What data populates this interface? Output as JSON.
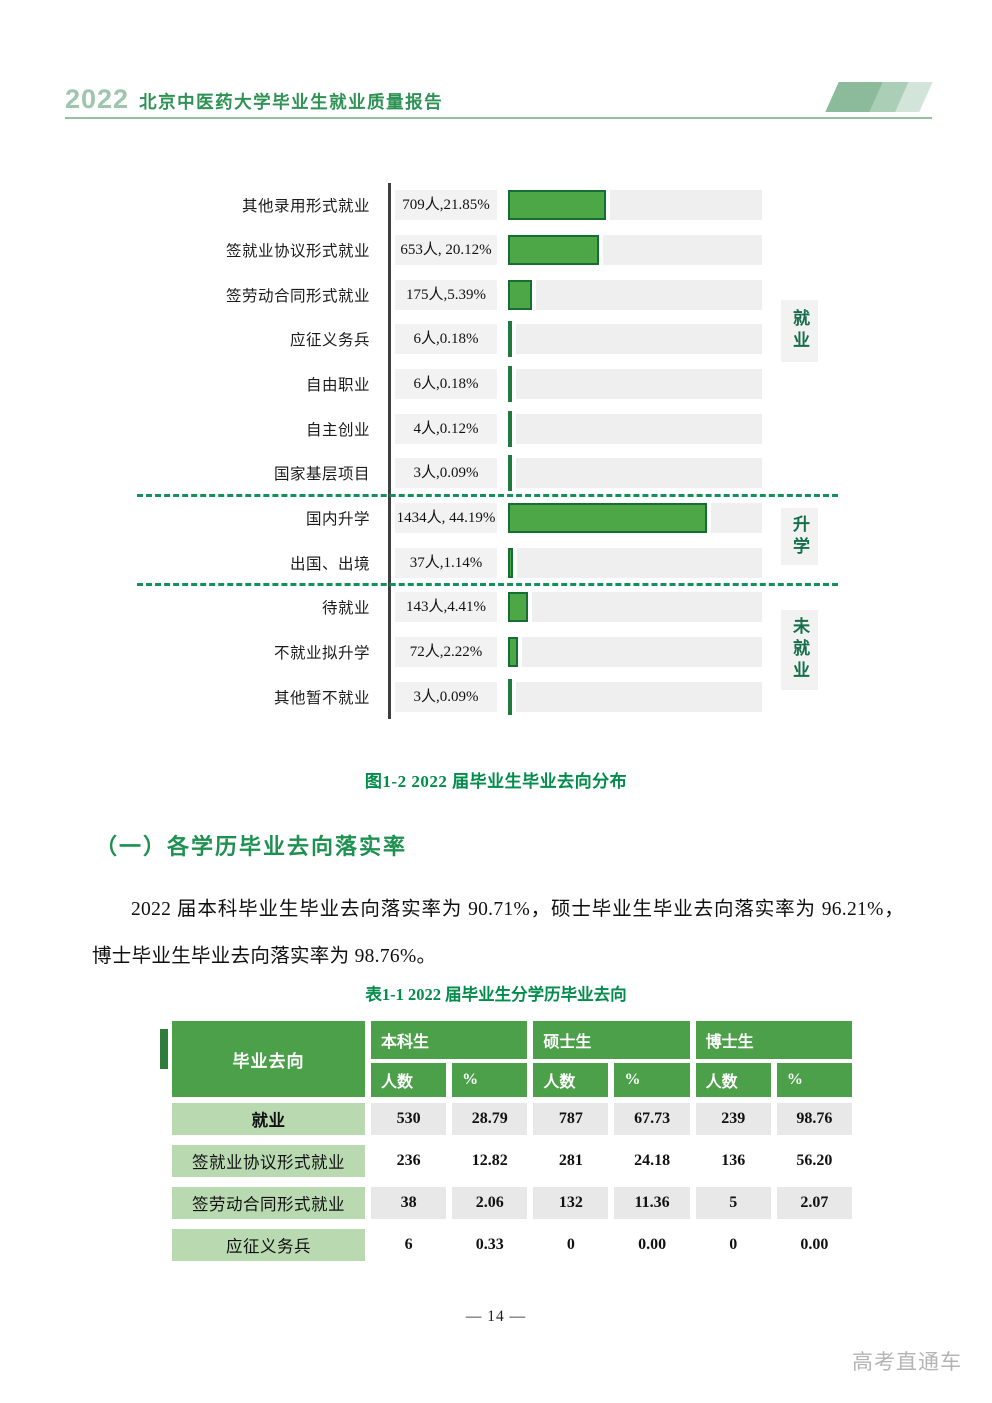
{
  "header": {
    "year": "2022",
    "title": "北京中医药大学毕业生就业质量报告"
  },
  "chart_data": {
    "type": "bar",
    "orientation": "horizontal",
    "title": "图1-2  2022届毕业生毕业去向分布",
    "unit": "人",
    "max_value": 1434,
    "rows": [
      {
        "category": "其他录用形式就业",
        "count": 709,
        "percent": 21.85,
        "value_label": "709人,21.85%"
      },
      {
        "category": "签就业协议形式就业",
        "count": 653,
        "percent": 20.12,
        "value_label": "653人, 20.12%"
      },
      {
        "category": "签劳动合同形式就业",
        "count": 175,
        "percent": 5.39,
        "value_label": "175人,5.39%"
      },
      {
        "category": "应征义务兵",
        "count": 6,
        "percent": 0.18,
        "value_label": "6人,0.18%"
      },
      {
        "category": "自由职业",
        "count": 6,
        "percent": 0.18,
        "value_label": "6人,0.18%"
      },
      {
        "category": "自主创业",
        "count": 4,
        "percent": 0.12,
        "value_label": "4人,0.12%"
      },
      {
        "category": "国家基层项目",
        "count": 3,
        "percent": 0.09,
        "value_label": "3人,0.09%"
      },
      {
        "category": "国内升学",
        "count": 1434,
        "percent": 44.19,
        "value_label": "1434人, 44.19%"
      },
      {
        "category": "出国、出境",
        "count": 37,
        "percent": 1.14,
        "value_label": "37人,1.14%"
      },
      {
        "category": "待就业",
        "count": 143,
        "percent": 4.41,
        "value_label": "143人,4.41%"
      },
      {
        "category": "不就业拟升学",
        "count": 72,
        "percent": 2.22,
        "value_label": "72人,2.22%"
      },
      {
        "category": "其他暂不就业",
        "count": 3,
        "percent": 0.09,
        "value_label": "3人,0.09%"
      }
    ],
    "groups": [
      {
        "label": "就业",
        "row_start": 0,
        "row_end": 6
      },
      {
        "label": "升学",
        "row_start": 7,
        "row_end": 8
      },
      {
        "label": "未就业",
        "row_start": 9,
        "row_end": 11
      }
    ],
    "legend_position": "right",
    "grid": false
  },
  "figure_caption": "图1-2  2022 届毕业生毕业去向分布",
  "section": {
    "heading": "（一）各学历毕业去向落实率",
    "paragraph": "2022 届本科毕业生毕业去向落实率为 90.71%，硕士毕业生毕业去向落实率为 96.21%，博士毕业生毕业去向落实率为 98.76%。"
  },
  "table": {
    "caption": "表1-1  2022 届毕业生分学历毕业去向",
    "corner_header": "毕业去向",
    "group_headers": [
      "本科生",
      "硕士生",
      "博士生"
    ],
    "sub_headers": [
      "人数",
      "%"
    ],
    "rows": [
      {
        "label": "就业",
        "bold": true,
        "shaded": true,
        "values": [
          "530",
          "28.79",
          "787",
          "67.73",
          "239",
          "98.76"
        ]
      },
      {
        "label": "签就业协议形式就业",
        "bold": false,
        "shaded": false,
        "values": [
          "236",
          "12.82",
          "281",
          "24.18",
          "136",
          "56.20"
        ]
      },
      {
        "label": "签劳动合同形式就业",
        "bold": false,
        "shaded": true,
        "values": [
          "38",
          "2.06",
          "132",
          "11.36",
          "5",
          "2.07"
        ]
      },
      {
        "label": "应征义务兵",
        "bold": false,
        "shaded": false,
        "values": [
          "6",
          "0.33",
          "0",
          "0.00",
          "0",
          "0.00"
        ]
      }
    ]
  },
  "footer": {
    "page_number": "— 14 —",
    "watermark": "高考直通车"
  },
  "colors": {
    "year_green": "#9dc6ac",
    "title_green": "#2e9254",
    "line_green": "#93c1a4",
    "deco_1": "#8cbb9b",
    "deco_2": "#abceb7",
    "deco_3": "#d3e5d9",
    "bar_fill": "#4ea747",
    "bar_border": "#166e35",
    "tick_green": "#1f7a3c",
    "track_gray": "#efefef",
    "box_gray": "#f2f2f2",
    "dash_green": "#12925a",
    "group_green": "#166e4a",
    "caption_green": "#008c4a",
    "heading_green": "#1e9150",
    "tbl_green": "#4ca04a",
    "cell_green": "#b9d9b1",
    "cell_gray": "#e8e8e8",
    "notch_green": "#2f7d3b",
    "watermark_gray": "#b4b4b4"
  }
}
